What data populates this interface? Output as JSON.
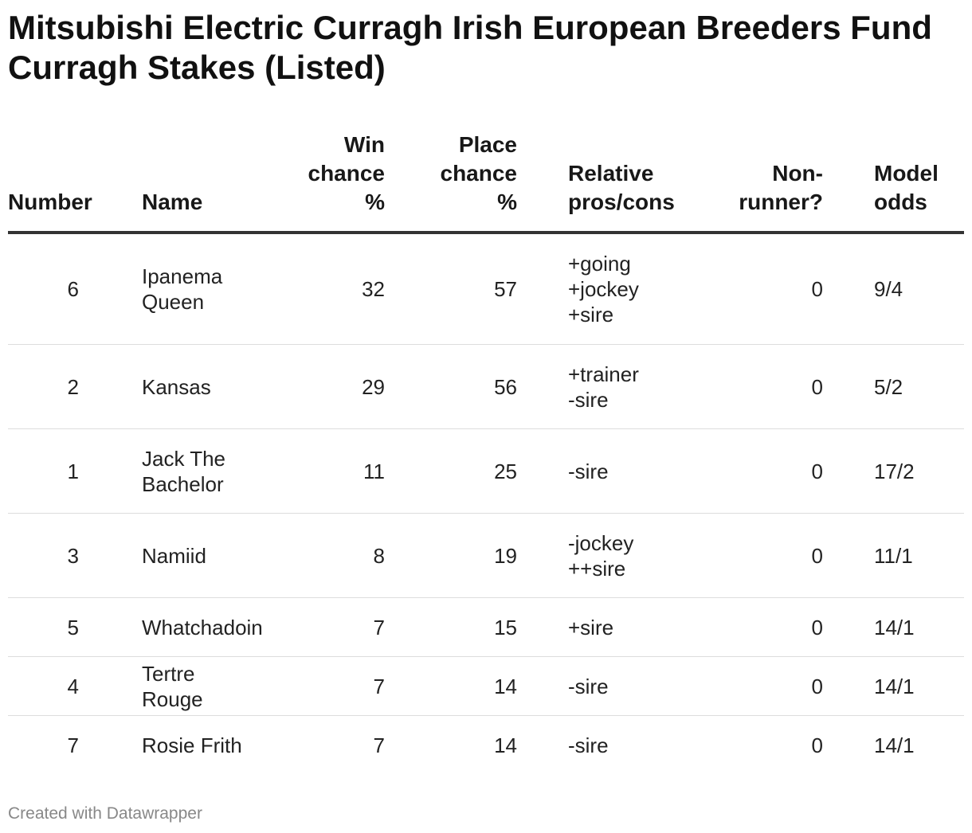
{
  "title": "Mitsubishi Electric Curragh Irish European Breeders Fund Curragh Stakes (Listed)",
  "footer": "Created with Datawrapper",
  "chart_data": {
    "type": "table",
    "title": "Mitsubishi Electric Curragh Irish European Breeders Fund Curragh Stakes (Listed)",
    "columns": [
      "Number",
      "Name",
      "Win chance %",
      "Place chance %",
      "Relative pros/cons",
      "Non-runner?",
      "Model odds"
    ],
    "rows": [
      {
        "number": "6",
        "name": "Ipanema Queen",
        "win": "32",
        "place": "57",
        "relative": "+going\n+jockey\n+sire",
        "non_runner": "0",
        "odds": "9/4"
      },
      {
        "number": "2",
        "name": "Kansas",
        "win": "29",
        "place": "56",
        "relative": "+trainer\n-sire",
        "non_runner": "0",
        "odds": "5/2"
      },
      {
        "number": "1",
        "name": "Jack The Bachelor",
        "win": "11",
        "place": "25",
        "relative": "-sire",
        "non_runner": "0",
        "odds": "17/2"
      },
      {
        "number": "3",
        "name": "Namiid",
        "win": "8",
        "place": "19",
        "relative": "-jockey\n++sire",
        "non_runner": "0",
        "odds": "11/1"
      },
      {
        "number": "5",
        "name": "Whatchadoin",
        "win": "7",
        "place": "15",
        "relative": "+sire",
        "non_runner": "0",
        "odds": "14/1"
      },
      {
        "number": "4",
        "name": "Tertre Rouge",
        "win": "7",
        "place": "14",
        "relative": "-sire",
        "non_runner": "0",
        "odds": "14/1"
      },
      {
        "number": "7",
        "name": "Rosie Frith",
        "win": "7",
        "place": "14",
        "relative": "-sire",
        "non_runner": "0",
        "odds": "14/1"
      }
    ]
  }
}
